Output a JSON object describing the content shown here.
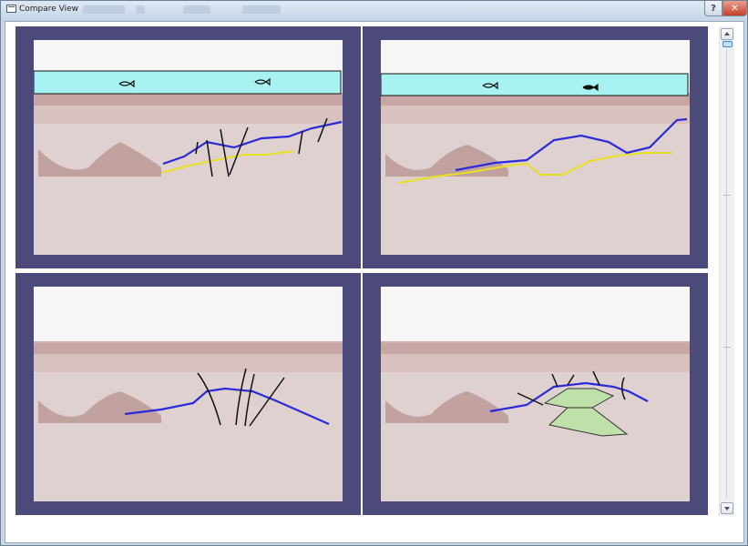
{
  "window": {
    "title": "Compare View",
    "help_label": "?",
    "close_label": "✕"
  },
  "icons": {
    "app": "window-icon",
    "help": "help-icon",
    "close": "close-icon",
    "up": "arrow-up-icon",
    "down": "arrow-down-icon"
  },
  "colors": {
    "panel_border": "#4b4a7b",
    "sea_water": "#a9f2f2",
    "horizon_upper": "#2a2ad8",
    "horizon_lower": "#e8e020",
    "fault_lines": "#111111",
    "interpreted_body": "#bfe0a8"
  },
  "panels": [
    {
      "name": "top-left",
      "sea_overlay": true,
      "fish": true,
      "horizons": [
        "blue",
        "yellow"
      ],
      "faults": true,
      "body": false
    },
    {
      "name": "top-right",
      "sea_overlay": true,
      "fish": true,
      "horizons": [
        "blue",
        "yellow"
      ],
      "faults": false,
      "body": false
    },
    {
      "name": "bottom-left",
      "sea_overlay": false,
      "fish": false,
      "horizons": [
        "blue"
      ],
      "faults": true,
      "body": false
    },
    {
      "name": "bottom-right",
      "sea_overlay": false,
      "fish": false,
      "horizons": [
        "blue"
      ],
      "faults": true,
      "body": true
    }
  ],
  "slider": {
    "position_fraction": 0.0
  }
}
